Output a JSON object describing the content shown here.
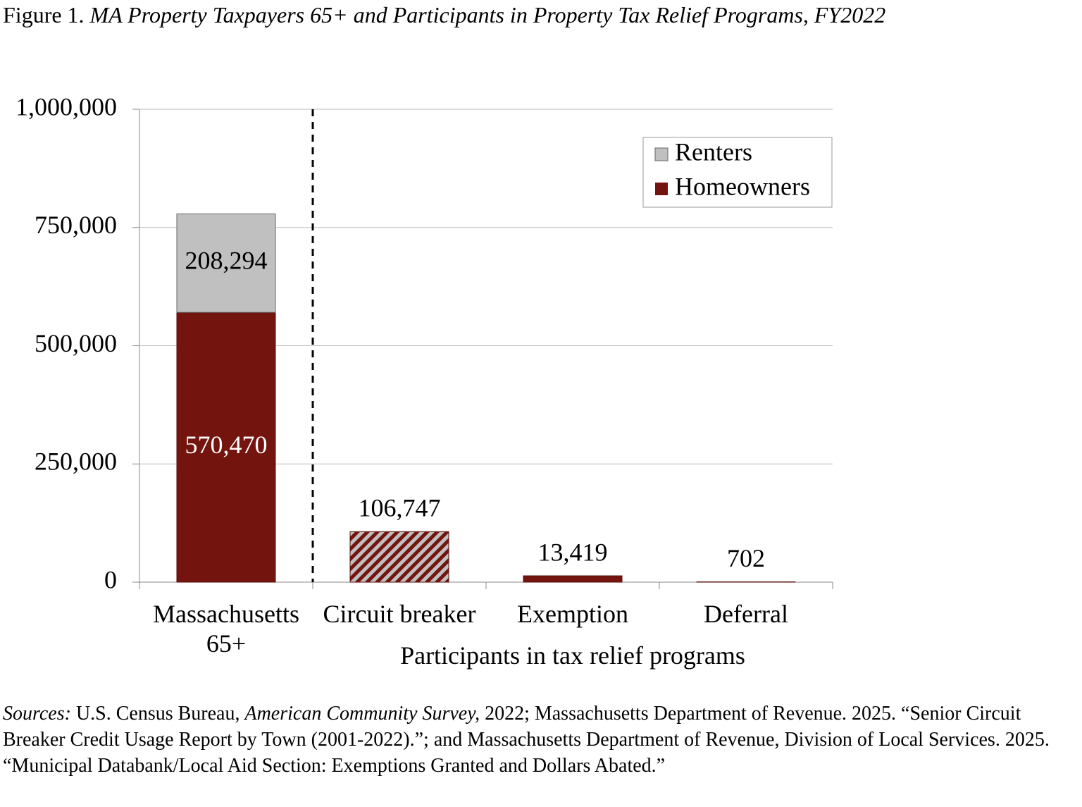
{
  "chart_data": {
    "type": "stacked_bar",
    "title": {
      "label": "Figure 1.",
      "text": "MA Property Taxpayers 65+ and Participants in Property Tax Relief Programs, FY2022"
    },
    "categories": [
      "Massachusetts 65+",
      "Circuit breaker",
      "Exemption",
      "Deferral"
    ],
    "x_group_label": "Participants in tax relief programs",
    "series": [
      {
        "name": "Homeowners",
        "color": "#74140f",
        "values": [
          570470,
          106747,
          13419,
          702
        ],
        "value_labels": [
          "570,470",
          "106,747",
          "13,419",
          "702"
        ]
      },
      {
        "name": "Renters",
        "color": "#c0c0c0",
        "values": [
          208294,
          null,
          null,
          null
        ],
        "value_labels": [
          "208,294",
          null,
          null,
          null
        ]
      }
    ],
    "hatch": [
      false,
      true,
      false,
      false
    ],
    "ylim": [
      0,
      1000000
    ],
    "yticks": [
      0,
      {
        "value": 250000,
        "label": "250,000"
      },
      {
        "value": 500000,
        "label": "500,000"
      },
      {
        "value": 750000,
        "label": "750,000"
      },
      {
        "value": 1000000,
        "label": "1,000,000"
      }
    ],
    "grid": true,
    "legend": "upper right",
    "sources": [
      {
        "text": "Sources:",
        "italic": true
      },
      {
        "text": " U.S. Census Bureau, ",
        "italic": false
      },
      {
        "text": "American Community Survey,",
        "italic": true
      },
      {
        "text": " 2022; Massachusetts Department of Revenue. 2025. “Senior Circuit Breaker Credit Usage Report by Town (2001-2022).”; and Massachusetts Department of Revenue, Division of Local Services. 2025. “Municipal Databank/Local Aid Section: Exemptions Granted and Dollars Abated.”",
        "italic": false
      }
    ]
  }
}
